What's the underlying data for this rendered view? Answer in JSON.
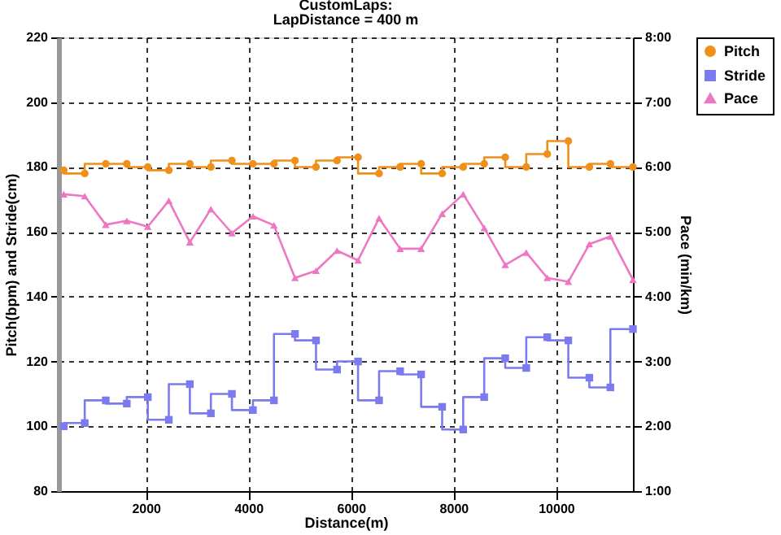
{
  "chart_data": {
    "type": "step",
    "title": "CustomLaps:",
    "subtitle": "LapDistance = 400 m",
    "xlabel": "Distance(m)",
    "ylabel": "Pitch(bpm) and Stride(cm)",
    "y2label": "Pace (min/km)",
    "x": [
      400,
      810,
      1220,
      1630,
      2040,
      2450,
      2860,
      3270,
      3680,
      4090,
      4500,
      4910,
      5320,
      5730,
      6140,
      6550,
      6960,
      7370,
      7780,
      8190,
      8600,
      9010,
      9420,
      9830,
      10240,
      10650,
      11060,
      11500
    ],
    "series": [
      {
        "name": "Pitch",
        "color": "#f0901a",
        "marker": "circle",
        "values": [
          179,
          178,
          181,
          181,
          180,
          179,
          181,
          180,
          182,
          181,
          181,
          182,
          180,
          182,
          183,
          178,
          180,
          181,
          178,
          180,
          181,
          183,
          180,
          184,
          188,
          180,
          181,
          180
        ]
      },
      {
        "name": "Stride",
        "color": "#7b7bef",
        "marker": "square",
        "values": [
          100,
          101,
          108,
          107,
          109,
          102,
          113,
          104,
          110,
          105,
          108,
          128.5,
          126.5,
          117.5,
          120,
          108,
          117,
          116,
          106,
          99,
          109,
          121,
          118,
          127.5,
          126.5,
          115,
          112,
          130
        ]
      },
      {
        "name": "Pace",
        "color": "#ee77c4",
        "type": "line",
        "marker": "triangle",
        "axis": "y2",
        "values": [
          5.58,
          5.55,
          5.11,
          5.17,
          5.08,
          5.48,
          4.84,
          5.35,
          4.98,
          5.24,
          5.1,
          4.29,
          4.4,
          4.71,
          4.56,
          5.21,
          4.74,
          4.74,
          5.28,
          5.58,
          5.06,
          4.49,
          4.68,
          4.29,
          4.23,
          4.81,
          4.93,
          4.26
        ]
      }
    ],
    "xlim": [
      300,
      11500
    ],
    "xticks": [
      2000,
      4000,
      6000,
      8000,
      10000
    ],
    "ylim": [
      80,
      220
    ],
    "yticks": [
      80,
      100,
      120,
      140,
      160,
      180,
      200,
      220
    ],
    "y2lim": [
      1,
      8
    ],
    "y2ticks": [
      {
        "value": 1,
        "label": "1:00"
      },
      {
        "value": 2,
        "label": "2:00"
      },
      {
        "value": 3,
        "label": "3:00"
      },
      {
        "value": 4,
        "label": "4:00"
      },
      {
        "value": 5,
        "label": "5:00"
      },
      {
        "value": 6,
        "label": "6:00"
      },
      {
        "value": 7,
        "label": "7:00"
      },
      {
        "value": 8,
        "label": "8:00"
      }
    ],
    "grid": true,
    "legend": "top right"
  }
}
